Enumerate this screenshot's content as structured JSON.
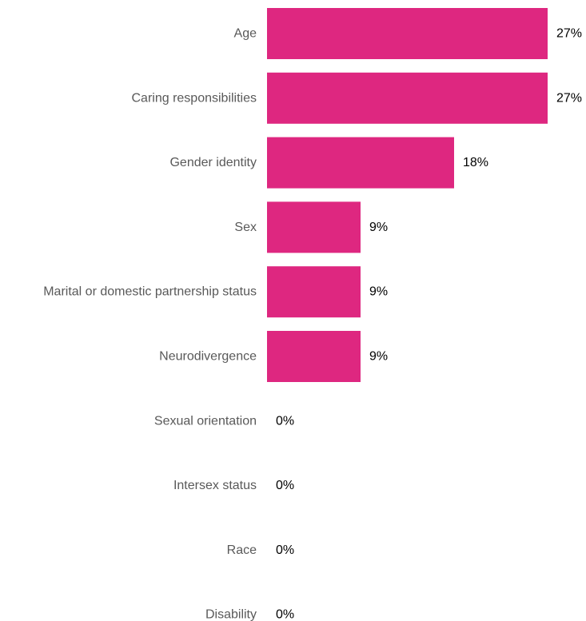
{
  "chart_data": {
    "type": "bar",
    "orientation": "horizontal",
    "categories": [
      "Age",
      "Caring responsibilities",
      "Gender identity",
      "Sex",
      "Marital or domestic partnership status",
      "Neurodivergence",
      "Sexual orientation",
      "Intersex status",
      "Race",
      "Disability"
    ],
    "values": [
      27,
      27,
      18,
      9,
      9,
      9,
      0,
      0,
      0,
      0
    ],
    "value_labels": [
      "27%",
      "27%",
      "18%",
      "9%",
      "9%",
      "9%",
      "0%",
      "0%",
      "0%",
      "0%"
    ],
    "unit": "%",
    "xlim": [
      0,
      27
    ],
    "grid": false,
    "legend": "none",
    "colors": {
      "bar": "#de2780",
      "category_text": "#595959",
      "value_text": "#000000"
    }
  }
}
